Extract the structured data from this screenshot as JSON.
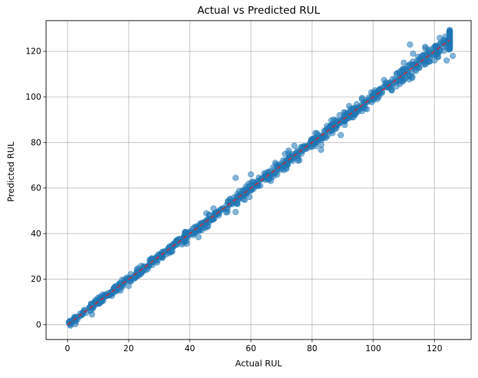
{
  "chart_data": {
    "type": "scatter",
    "title": "Actual vs Predicted RUL",
    "xlabel": "Actual RUL",
    "ylabel": "Predicted RUL",
    "xlim": [
      -7,
      132
    ],
    "ylim": [
      -6.5,
      133.5
    ],
    "xticks": [
      0,
      20,
      40,
      60,
      80,
      100,
      120
    ],
    "yticks": [
      0,
      20,
      40,
      60,
      80,
      100,
      120
    ],
    "grid": true,
    "point_color": "#1f77b4",
    "point_alpha": 0.55,
    "reference_line": {
      "from": [
        0,
        0
      ],
      "to": [
        125,
        125
      ],
      "color": "#d62728",
      "style": "dashed"
    },
    "sampling": {
      "actual_range": [
        0,
        125
      ],
      "points_per_unit": 7,
      "cap_value": 125,
      "cap_points": 250,
      "noise_sd_low": 0.8,
      "noise_sd_high": 1.8,
      "outliers": [
        [
          8,
          4.5
        ],
        [
          20,
          17
        ],
        [
          55,
          64.5
        ],
        [
          55,
          49.5
        ],
        [
          60,
          66
        ],
        [
          83,
          79
        ],
        [
          89,
          92
        ],
        [
          97,
          96
        ],
        [
          112,
          123
        ],
        [
          118,
          115.5
        ],
        [
          120,
          116
        ],
        [
          124,
          116
        ],
        [
          126,
          118
        ],
        [
          113,
          119
        ],
        [
          110,
          115
        ],
        [
          106,
          103
        ],
        [
          117,
          122
        ]
      ]
    }
  }
}
